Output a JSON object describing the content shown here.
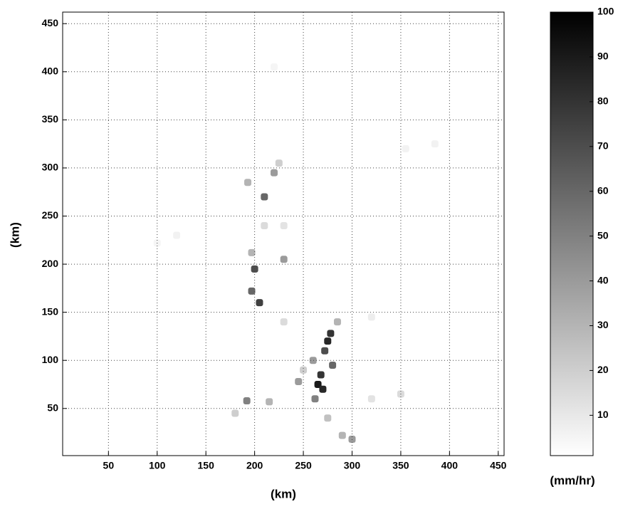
{
  "chart_data": {
    "type": "heatmap",
    "xlabel": "(km)",
    "ylabel": "(km)",
    "colorbar_label": "(mm/hr)",
    "x": [
      275,
      278,
      272,
      268,
      265,
      270,
      280,
      262,
      260,
      285,
      200,
      197,
      205,
      210,
      197,
      230,
      193,
      220,
      225,
      192,
      215,
      180,
      290,
      300,
      275,
      350,
      320,
      230,
      320,
      210,
      230,
      100,
      120,
      355,
      385,
      220,
      250,
      245
    ],
    "y": [
      120,
      128,
      110,
      85,
      75,
      70,
      95,
      60,
      100,
      140,
      195,
      172,
      160,
      270,
      212,
      205,
      285,
      295,
      305,
      58,
      57,
      45,
      22,
      18,
      40,
      65,
      60,
      140,
      145,
      240,
      240,
      222,
      230,
      320,
      325,
      405,
      90,
      78
    ],
    "values": [
      85,
      80,
      70,
      80,
      90,
      85,
      60,
      50,
      40,
      30,
      70,
      60,
      75,
      60,
      30,
      40,
      30,
      40,
      20,
      50,
      30,
      20,
      30,
      40,
      25,
      15,
      12,
      15,
      8,
      15,
      12,
      5,
      6,
      6,
      6,
      5,
      20,
      40
    ],
    "xlim": [
      3,
      456
    ],
    "ylim": [
      1,
      462
    ],
    "xticks": [
      50,
      100,
      150,
      200,
      250,
      300,
      350,
      400,
      450
    ],
    "yticks": [
      50,
      100,
      150,
      200,
      250,
      300,
      350,
      400,
      450
    ],
    "clim": [
      1,
      100
    ],
    "cticks": [
      10,
      20,
      30,
      40,
      50,
      60,
      70,
      80,
      90,
      100
    ],
    "cmap": [
      "#ffffff",
      "#000000"
    ],
    "grid": true
  }
}
